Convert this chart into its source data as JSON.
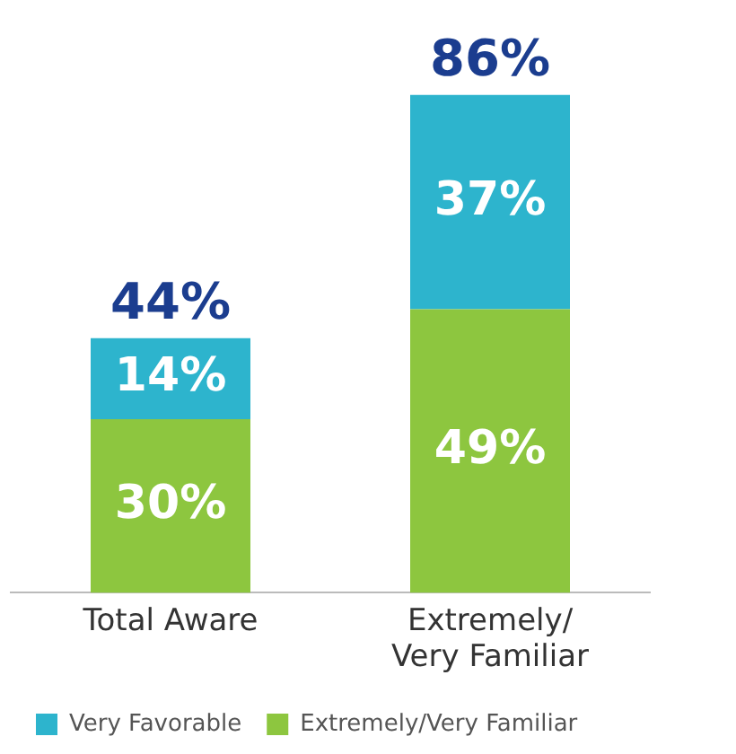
{
  "chart_data": {
    "type": "bar",
    "stacked": true,
    "categories": [
      "Total Aware",
      "Extremely/ Very Familiar"
    ],
    "series": [
      {
        "name": "Extremely/Very Familiar",
        "color": "#8dc63f",
        "values": [
          30,
          49
        ],
        "value_labels": [
          "30%",
          "49%"
        ]
      },
      {
        "name": "Very Favorable",
        "color": "#2db4cd",
        "values": [
          14,
          37
        ],
        "value_labels": [
          "14%",
          "37%"
        ]
      }
    ],
    "totals": [
      "44%",
      "86%"
    ],
    "legend": "bottom",
    "grid": false,
    "tick_labels": "x"
  }
}
